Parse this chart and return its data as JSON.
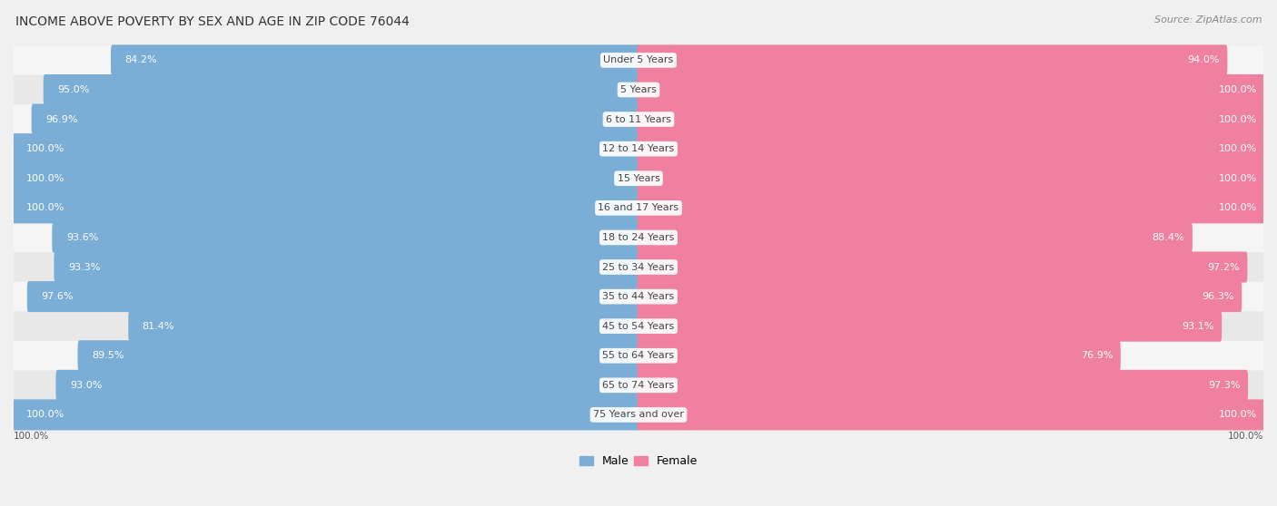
{
  "title": "INCOME ABOVE POVERTY BY SEX AND AGE IN ZIP CODE 76044",
  "source": "Source: ZipAtlas.com",
  "categories": [
    "Under 5 Years",
    "5 Years",
    "6 to 11 Years",
    "12 to 14 Years",
    "15 Years",
    "16 and 17 Years",
    "18 to 24 Years",
    "25 to 34 Years",
    "35 to 44 Years",
    "45 to 54 Years",
    "55 to 64 Years",
    "65 to 74 Years",
    "75 Years and over"
  ],
  "male_values": [
    84.2,
    95.0,
    96.9,
    100.0,
    100.0,
    100.0,
    93.6,
    93.3,
    97.6,
    81.4,
    89.5,
    93.0,
    100.0
  ],
  "female_values": [
    94.0,
    100.0,
    100.0,
    100.0,
    100.0,
    100.0,
    88.4,
    97.2,
    96.3,
    93.1,
    76.9,
    97.3,
    100.0
  ],
  "male_color": "#7aaed6",
  "female_color": "#f080a0",
  "male_label": "Male",
  "female_label": "Female",
  "bar_height": 0.55,
  "background_color": "#f0f0f0",
  "title_fontsize": 10,
  "source_fontsize": 8,
  "label_fontsize": 8,
  "value_fontsize": 8,
  "legend_fontsize": 9,
  "row_bg_odd": "#f5f5f5",
  "row_bg_even": "#e8e8e8",
  "max_val": 100.0
}
